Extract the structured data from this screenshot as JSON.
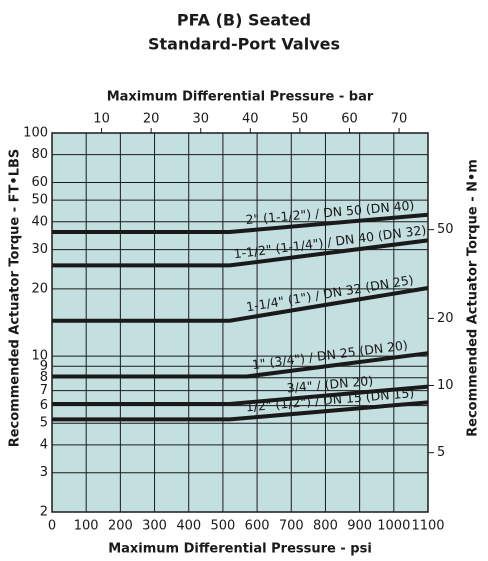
{
  "chart_data": {
    "type": "line",
    "title": "PFA (B) Seated",
    "subtitle": "Standard-Port Valves",
    "x_label": "Maximum Differential Pressure - psi",
    "x2_label": "Maximum Differential Pressure - bar",
    "y_label": "Recommended Actuator Torque - FT•LBS",
    "y2_label": "Recommended Actuator Torque - N•m",
    "log_y": true,
    "grid": true,
    "background": "#c4dfdf",
    "xlim": [
      0,
      1100
    ],
    "xticks": [
      0,
      100,
      200,
      300,
      400,
      500,
      600,
      700,
      800,
      900,
      1000,
      1100
    ],
    "x2lim": [
      0,
      75.84
    ],
    "x2ticks": [
      10,
      20,
      30,
      40,
      50,
      60,
      70
    ],
    "ylim": [
      2,
      100
    ],
    "yticks": [
      2,
      3,
      4,
      5,
      6,
      7,
      8,
      9,
      10,
      20,
      30,
      40,
      50,
      60,
      80,
      100
    ],
    "y2lim": [
      2.71,
      135.6
    ],
    "y2ticks": [
      5,
      10,
      20,
      50
    ],
    "series": [
      {
        "name": "2\" (1-1/2\") / DN 50 (DN 40)",
        "color": "#1a1a1a",
        "x": [
          0,
          520,
          1100
        ],
        "values": [
          36,
          36,
          43
        ]
      },
      {
        "name": "1-1/2\" (1-1/4\") / DN 40 (DN 32)",
        "color": "#1a1a1a",
        "x": [
          0,
          520,
          1100
        ],
        "values": [
          25.5,
          25.5,
          33
        ]
      },
      {
        "name": "1-1/4\" (1\") / DN 32 (DN 25)",
        "color": "#1a1a1a",
        "x": [
          0,
          520,
          1100
        ],
        "values": [
          14.4,
          14.4,
          20.2
        ]
      },
      {
        "name": "1\" (3/4\") / DN 25 (DN 20)",
        "color": "#1a1a1a",
        "x": [
          0,
          570,
          1100
        ],
        "values": [
          8.1,
          8.1,
          10.3
        ]
      },
      {
        "name": "3/4\" / (DN 20)",
        "color": "#1a1a1a",
        "x": [
          0,
          520,
          1100
        ],
        "values": [
          6.1,
          6.1,
          7.3
        ]
      },
      {
        "name": "1/2\" (1/2\") / DN 15 (DN 15)",
        "color": "#1a1a1a",
        "x": [
          0,
          520,
          1100
        ],
        "values": [
          5.2,
          5.2,
          6.2
        ]
      }
    ]
  }
}
